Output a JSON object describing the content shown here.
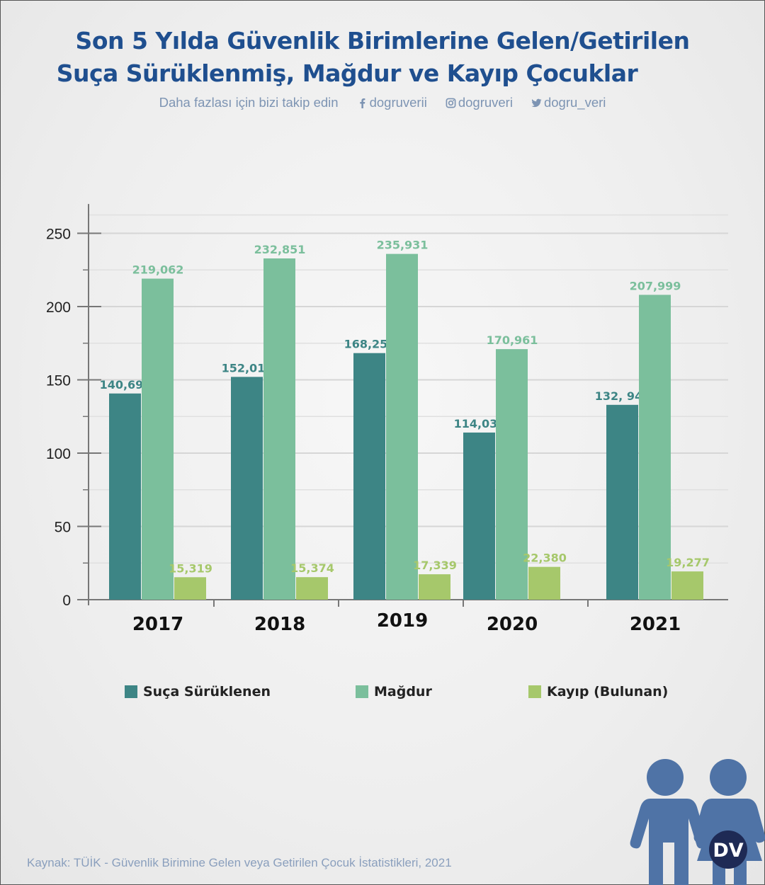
{
  "header": {
    "title_line1": "Son 5 Yılda Güvenlik Birimlerine Gelen/Getirilen",
    "title_line2": "Suça Sürüklenmiş, Mağdur ve Kayıp Çocuklar",
    "follow_text": "Daha fazlası için bizi takip edin",
    "facebook": "dogruverii",
    "instagram": "dogruveri",
    "twitter": "dogru_veri"
  },
  "chart_data": {
    "type": "bar",
    "categories": [
      "2017",
      "2018",
      "2019",
      "2020",
      "2021"
    ],
    "series": [
      {
        "name": "Suça Sürüklenen",
        "values": [
          140.692,
          152.011,
          168.25,
          114.038,
          132.943
        ],
        "labels": [
          "140,692",
          "152,011",
          "168,250",
          "114,038",
          "132, 943"
        ],
        "color": "#3d8585"
      },
      {
        "name": "Mağdur",
        "values": [
          219.062,
          232.851,
          235.931,
          170.961,
          207.999
        ],
        "labels": [
          "219,062",
          "232,851",
          "235,931",
          "170,961",
          "207,999"
        ],
        "color": "#7bbf9c"
      },
      {
        "name": "Kayıp (Bulunan)",
        "values": [
          15.319,
          15.374,
          17.339,
          22.38,
          19.277
        ],
        "labels": [
          "15,319",
          "15,374",
          "17,339",
          "22,380",
          "19,277"
        ],
        "color": "#a6c86b"
      }
    ],
    "yticks": [
      "0",
      "50",
      "100",
      "150",
      "200",
      "250"
    ],
    "ylim": [
      0,
      270
    ],
    "grid": true,
    "legend": "bottom"
  },
  "source": "Kaynak: TÜİK - Güvenlik Birimine Gelen veya Getirilen Çocuk İstatistikleri, 2021",
  "logo_text": "DV"
}
